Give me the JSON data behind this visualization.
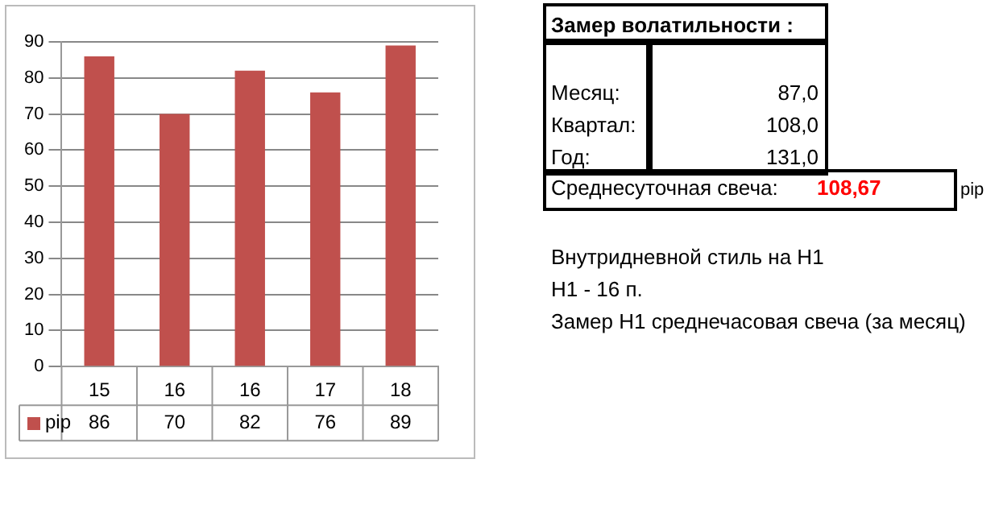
{
  "chart_data": {
    "type": "bar",
    "categories": [
      "15",
      "16",
      "16",
      "17",
      "18"
    ],
    "series": [
      {
        "name": "pip",
        "color": "#c0504d",
        "values": [
          86,
          70,
          82,
          76,
          89
        ]
      }
    ],
    "ylim": [
      0,
      90
    ],
    "yticks": [
      0,
      10,
      20,
      30,
      40,
      50,
      60,
      70,
      80,
      90
    ],
    "grid": "y",
    "legend": "bottom",
    "data_labels": true,
    "annotations": [
      "Замер  волатильности  :",
      "Месяц:",
      "87,0",
      "Квартал:",
      "108,0",
      "Год:",
      "131,0",
      "Среднесуточная свеча:",
      "108,67",
      "pip",
      "Внутридневной стиль на H1",
      "H1 - 16 п.",
      "Замер H1 среднечасовая свеча (за месяц)"
    ]
  }
}
